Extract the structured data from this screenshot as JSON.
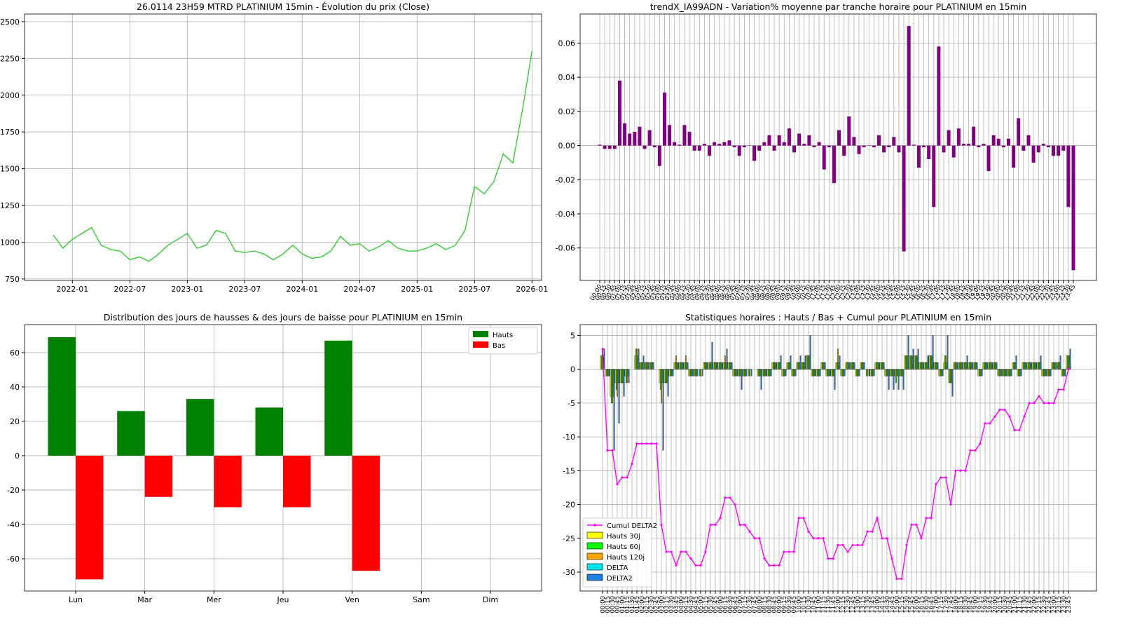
{
  "chart_data": [
    {
      "type": "line",
      "title": "26.0114 23H59 MTRD PLATINIUM 15min - Évolution du prix (Close)",
      "x": [
        "2021-11",
        "2021-12",
        "2022-01",
        "2022-02",
        "2022-03",
        "2022-04",
        "2022-05",
        "2022-06",
        "2022-07",
        "2022-08",
        "2022-09",
        "2022-10",
        "2022-11",
        "2022-12",
        "2023-01",
        "2023-02",
        "2023-03",
        "2023-04",
        "2023-05",
        "2023-06",
        "2023-07",
        "2023-08",
        "2023-09",
        "2023-10",
        "2023-11",
        "2023-12",
        "2024-01",
        "2024-02",
        "2024-03",
        "2024-04",
        "2024-05",
        "2024-06",
        "2024-07",
        "2024-08",
        "2024-09",
        "2024-10",
        "2024-11",
        "2024-12",
        "2025-01",
        "2025-02",
        "2025-03",
        "2025-04",
        "2025-05",
        "2025-06",
        "2025-07",
        "2025-08",
        "2025-09",
        "2025-10",
        "2025-11",
        "2025-12",
        "2026-01"
      ],
      "values": [
        1050,
        960,
        1020,
        1060,
        1100,
        980,
        950,
        940,
        880,
        900,
        870,
        920,
        980,
        1020,
        1060,
        960,
        980,
        1080,
        1060,
        940,
        930,
        940,
        920,
        880,
        920,
        980,
        920,
        890,
        900,
        940,
        1040,
        980,
        990,
        940,
        970,
        1010,
        960,
        940,
        940,
        960,
        990,
        950,
        980,
        1080,
        1380,
        1330,
        1410,
        1600,
        1540,
        1900,
        2300
      ],
      "color": "#32cd32",
      "grid": true,
      "xlim": [
        "2021-08",
        "2026-02"
      ],
      "xticks": [
        "2022-01",
        "2022-07",
        "2023-01",
        "2023-07",
        "2024-01",
        "2024-07",
        "2025-01",
        "2025-07",
        "2026-01"
      ],
      "ylim": [
        740,
        2552
      ],
      "yticks": [
        750,
        1000,
        1250,
        1500,
        1750,
        2000,
        2250,
        2500
      ]
    },
    {
      "type": "bar",
      "title": "trendX_IA99ADN - Variation% moyenne par tranche horaire pour PLATINIUM en 15min",
      "categories": [
        "00:00",
        "00:15",
        "00:30",
        "00:45",
        "01:00",
        "01:15",
        "01:30",
        "01:45",
        "02:00",
        "02:15",
        "02:30",
        "02:45",
        "03:00",
        "03:15",
        "03:30",
        "03:45",
        "04:00",
        "04:15",
        "04:30",
        "04:45",
        "05:00",
        "05:15",
        "05:30",
        "05:45",
        "06:00",
        "06:15",
        "06:30",
        "06:45",
        "07:00",
        "07:15",
        "07:30",
        "07:45",
        "08:00",
        "08:15",
        "08:30",
        "08:45",
        "09:00",
        "09:15",
        "09:30",
        "09:45",
        "10:00",
        "10:15",
        "10:30",
        "10:45",
        "11:00",
        "11:15",
        "11:30",
        "11:45",
        "12:00",
        "12:15",
        "12:30",
        "12:45",
        "13:00",
        "13:15",
        "13:30",
        "13:45",
        "14:00",
        "14:15",
        "14:30",
        "14:45",
        "15:00",
        "15:15",
        "15:30",
        "15:45",
        "16:00",
        "16:15",
        "16:30",
        "16:45",
        "17:00",
        "17:15",
        "17:30",
        "17:45",
        "18:00",
        "18:15",
        "18:30",
        "18:45",
        "19:00",
        "19:15",
        "19:30",
        "19:45",
        "20:00",
        "20:15",
        "20:30",
        "20:45",
        "21:00",
        "21:15",
        "21:30",
        "21:45",
        "22:00",
        "22:15",
        "22:30",
        "22:45",
        "23:00",
        "23:15",
        "23:30",
        "23:45"
      ],
      "values": [
        0.0005,
        -0.002,
        -0.002,
        -0.002,
        0.038,
        0.013,
        0.007,
        0.008,
        0.011,
        -0.002,
        0.009,
        -0.001,
        -0.012,
        0.031,
        0.012,
        0.002,
        0.0005,
        0.012,
        0.008,
        -0.003,
        -0.003,
        0.001,
        -0.006,
        0.002,
        0.001,
        0.002,
        0.003,
        -0.001,
        -0.006,
        -0.001,
        0,
        -0.009,
        -0.003,
        0.002,
        0.006,
        -0.003,
        0.006,
        0.002,
        0.01,
        -0.004,
        0.007,
        0.001,
        0.006,
        -0.001,
        0.002,
        -0.014,
        -0.001,
        -0.022,
        0.009,
        -0.006,
        0.017,
        0.005,
        -0.005,
        -0.001,
        0,
        -0.001,
        0.006,
        -0.004,
        -0.001,
        0.005,
        -0.004,
        -0.062,
        0.07,
        0.0005,
        -0.013,
        -0.001,
        -0.008,
        -0.036,
        0.058,
        -0.004,
        0.009,
        -0.007,
        0.01,
        0.001,
        0.001,
        0.011,
        -0.001,
        0.001,
        -0.015,
        0.006,
        0.004,
        -0.001,
        0.004,
        -0.013,
        0.016,
        -0.003,
        0.006,
        -0.01,
        -0.004,
        0.001,
        -0.001,
        -0.006,
        -0.006,
        -0.003,
        -0.036,
        -0.073
      ],
      "color": "#800080",
      "grid": true,
      "ylim": [
        -0.079,
        0.077
      ],
      "yticks": [
        -0.06,
        -0.04,
        -0.02,
        {
          "value": 0,
          "label": "0.00"
        },
        0.02,
        0.04,
        0.06
      ]
    },
    {
      "type": "grouped_bar",
      "title": "Distribution des jours de hausses & des jours de baisse pour PLATINIUM en 15min",
      "categories": [
        "Lun",
        "Mar",
        "Mer",
        "Jeu",
        "Ven",
        "Sam",
        "Dim"
      ],
      "series": [
        {
          "name": "Hauts",
          "color": "#008000",
          "values": [
            69,
            26,
            33,
            28,
            67,
            0,
            0
          ]
        },
        {
          "name": "Bas",
          "color": "#ff0000",
          "values": [
            -72,
            -24,
            -30,
            -30,
            -67,
            0,
            0
          ]
        }
      ],
      "grid": true,
      "legend": "upper right",
      "ylim": [
        -78.8,
        76.3
      ],
      "yticks": [
        -60,
        -40,
        -20,
        0,
        20,
        40,
        60
      ]
    },
    {
      "type": "combo",
      "title": "Statistiques horaires : Hauts / Bas + Cumul pour PLATINIUM en 15min",
      "categories": [
        "00:00",
        "00:15",
        "00:30",
        "00:45",
        "01:00",
        "01:15",
        "01:30",
        "01:45",
        "02:00",
        "02:15",
        "02:30",
        "02:45",
        "03:00",
        "03:15",
        "03:30",
        "03:45",
        "04:00",
        "04:15",
        "04:30",
        "04:45",
        "05:00",
        "05:15",
        "05:30",
        "05:45",
        "06:00",
        "06:15",
        "06:30",
        "06:45",
        "07:00",
        "07:15",
        "07:30",
        "07:45",
        "08:00",
        "08:15",
        "08:30",
        "08:45",
        "09:00",
        "09:15",
        "09:30",
        "09:45",
        "10:00",
        "10:15",
        "10:30",
        "10:45",
        "11:00",
        "11:15",
        "11:30",
        "11:45",
        "12:00",
        "12:15",
        "12:30",
        "12:45",
        "13:00",
        "13:15",
        "13:30",
        "13:45",
        "14:00",
        "14:15",
        "14:30",
        "14:45",
        "15:00",
        "15:15",
        "15:30",
        "15:45",
        "16:00",
        "16:15",
        "16:30",
        "16:45",
        "17:00",
        "17:15",
        "17:30",
        "17:45",
        "18:00",
        "18:15",
        "18:30",
        "18:45",
        "19:00",
        "19:15",
        "19:30",
        "19:45",
        "20:00",
        "20:15",
        "20:30",
        "20:45",
        "21:00",
        "21:15",
        "21:30",
        "21:45",
        "22:00",
        "22:15",
        "22:30",
        "22:45",
        "23:00",
        "23:15",
        "23:30",
        "23:45"
      ],
      "series": [
        {
          "name": "Cumul DELTA2",
          "kind": "line",
          "color": "#ff00ff",
          "values": [
            3,
            -12,
            -12,
            -17,
            -16,
            -16,
            -14,
            -11,
            -11,
            -11,
            -11,
            -11,
            -23,
            -27,
            -27,
            -29,
            -27,
            -27,
            -28,
            -29,
            -29,
            -27,
            -23,
            -23,
            -22,
            -19,
            -19,
            -20,
            -23,
            -23,
            -24,
            -25,
            -25,
            -28,
            -29,
            -29,
            -29,
            -27,
            -27,
            -27,
            -22,
            -22,
            -24,
            -25,
            -25,
            -25,
            -28,
            -28,
            -26,
            -26,
            -27,
            -26,
            -26,
            -26,
            -24,
            -24,
            -22,
            -25,
            -25,
            -28,
            -31,
            -31,
            -26,
            -23,
            -23,
            -25,
            -22,
            -22,
            -17,
            -16,
            -16,
            -20,
            -15,
            -15,
            -15,
            -12,
            -12,
            -11,
            -8,
            -8,
            -7,
            -6,
            -6,
            -7,
            -9,
            -9,
            -7,
            -5,
            -5,
            -4,
            -5,
            -5,
            -5,
            -3,
            -3,
            0
          ]
        },
        {
          "name": "Hauts 30j",
          "kind": "bar",
          "color": "#ffff00",
          "values": [
            2,
            -1,
            -4,
            -2,
            -2,
            -1,
            0,
            2,
            1,
            1,
            1,
            0,
            -2,
            -2,
            -1,
            1,
            1,
            1,
            -1,
            -1,
            0,
            1,
            1,
            1,
            1,
            1,
            1,
            -1,
            -1,
            -1,
            0,
            0,
            -1,
            -1,
            -1,
            1,
            1,
            -1,
            1,
            -1,
            1,
            1,
            2,
            -1,
            -1,
            1,
            -1,
            -1,
            1,
            -1,
            1,
            1,
            -1,
            1,
            0,
            -1,
            1,
            1,
            -1,
            -1,
            -1,
            -1,
            2,
            2,
            2,
            1,
            1,
            2,
            1,
            -1,
            1,
            -2,
            1,
            1,
            1,
            1,
            1,
            -1,
            1,
            1,
            1,
            -1,
            -1,
            -1,
            1,
            -1,
            1,
            1,
            1,
            1,
            -1,
            -1,
            1,
            1,
            -1,
            2
          ]
        },
        {
          "name": "Hauts 60j",
          "kind": "bar",
          "color": "#00ff00",
          "values": [
            2,
            -1,
            -5,
            -3,
            -2,
            -2,
            0,
            3,
            1,
            1,
            1,
            0,
            -3,
            -2,
            -1,
            1,
            1,
            1,
            -1,
            -1,
            -1,
            1,
            1,
            1,
            1,
            1,
            1,
            -1,
            -1,
            -1,
            -1,
            0,
            -1,
            -1,
            -1,
            1,
            1,
            -1,
            1,
            -1,
            1,
            1,
            2,
            -1,
            -1,
            1,
            -1,
            -1,
            1,
            -1,
            1,
            1,
            -1,
            1,
            -1,
            -1,
            1,
            1,
            -1,
            -1,
            -2,
            -1,
            2,
            2,
            2,
            1,
            1,
            2,
            1,
            -1,
            2,
            -2,
            1,
            1,
            1,
            1,
            1,
            -1,
            1,
            1,
            1,
            -1,
            -1,
            -1,
            1,
            -1,
            1,
            1,
            1,
            1,
            -1,
            -1,
            1,
            1,
            -1,
            2
          ]
        },
        {
          "name": "Hauts 120j",
          "kind": "bar",
          "color": "#ffa500",
          "values": [
            3,
            -1,
            -5,
            -4,
            -2,
            -2,
            0,
            3,
            1,
            1,
            1,
            0,
            -5,
            -2,
            -1,
            2,
            1,
            2,
            -1,
            -1,
            -1,
            1,
            1,
            1,
            1,
            2,
            1,
            -1,
            -1,
            -1,
            -1,
            0,
            -1,
            -1,
            -1,
            1,
            1,
            -1,
            1,
            -1,
            1,
            1,
            2,
            -1,
            -1,
            1,
            -1,
            -1,
            3,
            -1,
            1,
            1,
            -1,
            1,
            -1,
            -1,
            1,
            1,
            -1,
            -1,
            -1,
            -1,
            2,
            2,
            2,
            1,
            1,
            2,
            1,
            -1,
            2,
            -2,
            1,
            1,
            1,
            1,
            1,
            -1,
            1,
            1,
            1,
            -1,
            -1,
            -1,
            1,
            -1,
            1,
            1,
            1,
            1,
            -1,
            -1,
            1,
            1,
            -1,
            2
          ]
        },
        {
          "name": "DELTA",
          "kind": "bar",
          "color": "#00e5ee",
          "values": [
            2,
            -1,
            -4,
            -2,
            -2,
            -1,
            0,
            2,
            1,
            1,
            1,
            0,
            -2,
            -2,
            -1,
            1,
            1,
            1,
            -1,
            -1,
            0,
            1,
            1,
            1,
            1,
            1,
            1,
            -1,
            -1,
            -1,
            0,
            0,
            -1,
            -1,
            -1,
            1,
            1,
            -1,
            1,
            -1,
            1,
            1,
            2,
            -1,
            -1,
            1,
            -1,
            -1,
            1,
            -1,
            1,
            1,
            -1,
            1,
            0,
            -1,
            1,
            1,
            -1,
            -1,
            -1,
            -1,
            2,
            2,
            2,
            1,
            1,
            2,
            1,
            -1,
            1,
            -2,
            1,
            1,
            1,
            1,
            1,
            -1,
            1,
            1,
            1,
            -1,
            -1,
            -1,
            1,
            -1,
            1,
            1,
            1,
            1,
            -1,
            -1,
            1,
            1,
            -1,
            2
          ]
        },
        {
          "name": "DELTA2",
          "kind": "bar",
          "color": "#1e7fe0",
          "values": [
            3,
            -1,
            -12,
            -8,
            -4,
            -2,
            0,
            3,
            2,
            1,
            1,
            0,
            -12,
            -4,
            -1,
            1,
            1,
            1,
            -1,
            -1,
            -1,
            1,
            4,
            1,
            1,
            3,
            1,
            -1,
            -3,
            -1,
            -1,
            0,
            -3,
            -1,
            -1,
            1,
            2,
            -1,
            2,
            -1,
            2,
            2,
            5,
            -1,
            -1,
            1,
            -1,
            -3,
            2,
            -1,
            1,
            1,
            -1,
            1,
            -1,
            -1,
            1,
            1,
            -3,
            -3,
            -3,
            -3,
            5,
            3,
            3,
            1,
            2,
            5,
            1,
            -1,
            5,
            -4,
            1,
            1,
            2,
            1,
            1,
            -1,
            1,
            1,
            1,
            -1,
            -1,
            -1,
            2,
            -1,
            1,
            1,
            1,
            2,
            -1,
            -1,
            1,
            2,
            -1,
            3
          ]
        }
      ],
      "grid": true,
      "legend": "lower left",
      "ylim": [
        -32.8,
        6.6
      ],
      "yticks": [
        -30,
        -25,
        -20,
        -15,
        -10,
        -5,
        0,
        5
      ]
    }
  ]
}
